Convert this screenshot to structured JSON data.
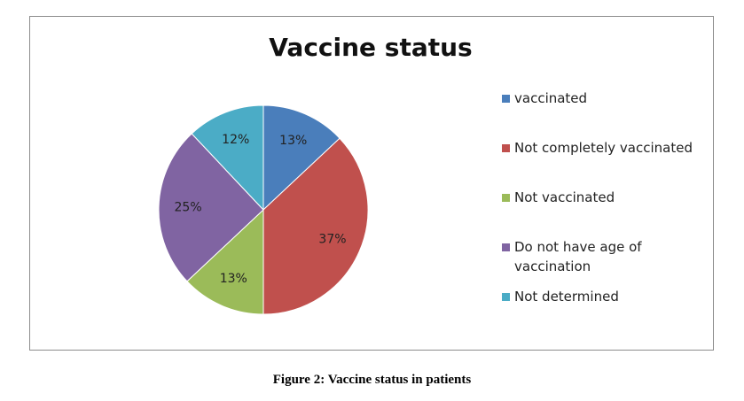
{
  "chart_data": {
    "type": "pie",
    "title": "Vaccine status",
    "categories": [
      "vaccinated",
      "Not completely vaccinated",
      "Not vaccinated",
      "Do not have age of vaccination",
      "Not determined"
    ],
    "values": [
      13,
      37,
      13,
      25,
      12
    ],
    "value_labels": [
      "13%",
      "37%",
      "13%",
      "25%",
      "12%"
    ],
    "colors": [
      "#4a7ebb",
      "#c0504d",
      "#9bbb59",
      "#8064a2",
      "#4bacc6"
    ],
    "legend": "right"
  },
  "caption": "Figure 2: Vaccine status in patients"
}
